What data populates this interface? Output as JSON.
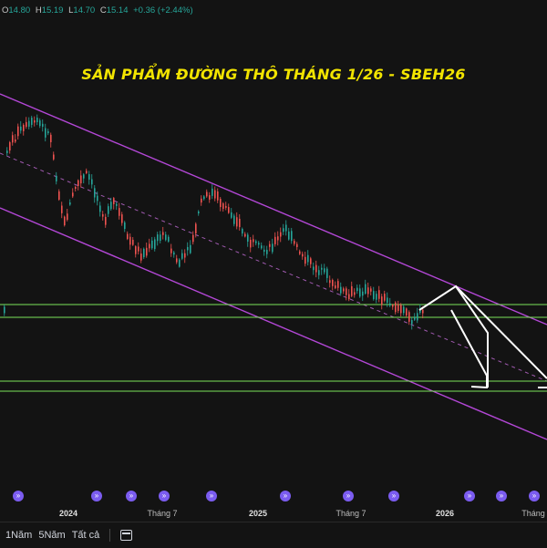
{
  "ohlc": {
    "o_label": "O",
    "o_value": "14.80",
    "h_label": "H",
    "h_value": "15.19",
    "l_label": "L",
    "l_value": "14.70",
    "c_label": "C",
    "c_value": "15.14",
    "change": "+0.36 (+2.44%)"
  },
  "chart_data": {
    "type": "candlestick",
    "title": "SẢN PHẨM ĐƯỜNG THÔ THÁNG 1/26 - SBEH26",
    "x_labels": [
      {
        "text": "2024",
        "bold": true
      },
      {
        "text": "Tháng 7",
        "bold": false
      },
      {
        "text": "2025",
        "bold": true
      },
      {
        "text": "Tháng 7",
        "bold": false
      },
      {
        "text": "2026",
        "bold": true
      },
      {
        "text": "Tháng",
        "bold": false
      }
    ],
    "last_price": {
      "open": 14.8,
      "high": 15.19,
      "low": 14.7,
      "close": 15.14,
      "change": 0.36,
      "change_pct": 2.44
    },
    "colors": {
      "up": "#26a69a",
      "down": "#ef5350",
      "channel": "#b347d6",
      "midline": "#a05ab0",
      "support": "#7be35a",
      "arrow": "#ffffff",
      "title": "#f2e400",
      "event_marker": "#7b5cf0"
    },
    "annotations": [
      "descending channel",
      "dashed channel midline",
      "two horizontal support zones",
      "projected bounce-then-drop arrow"
    ]
  },
  "bottom_bar": {
    "range_1y": "1Năm",
    "range_5y": "5Năm",
    "range_all": "Tất cả"
  }
}
